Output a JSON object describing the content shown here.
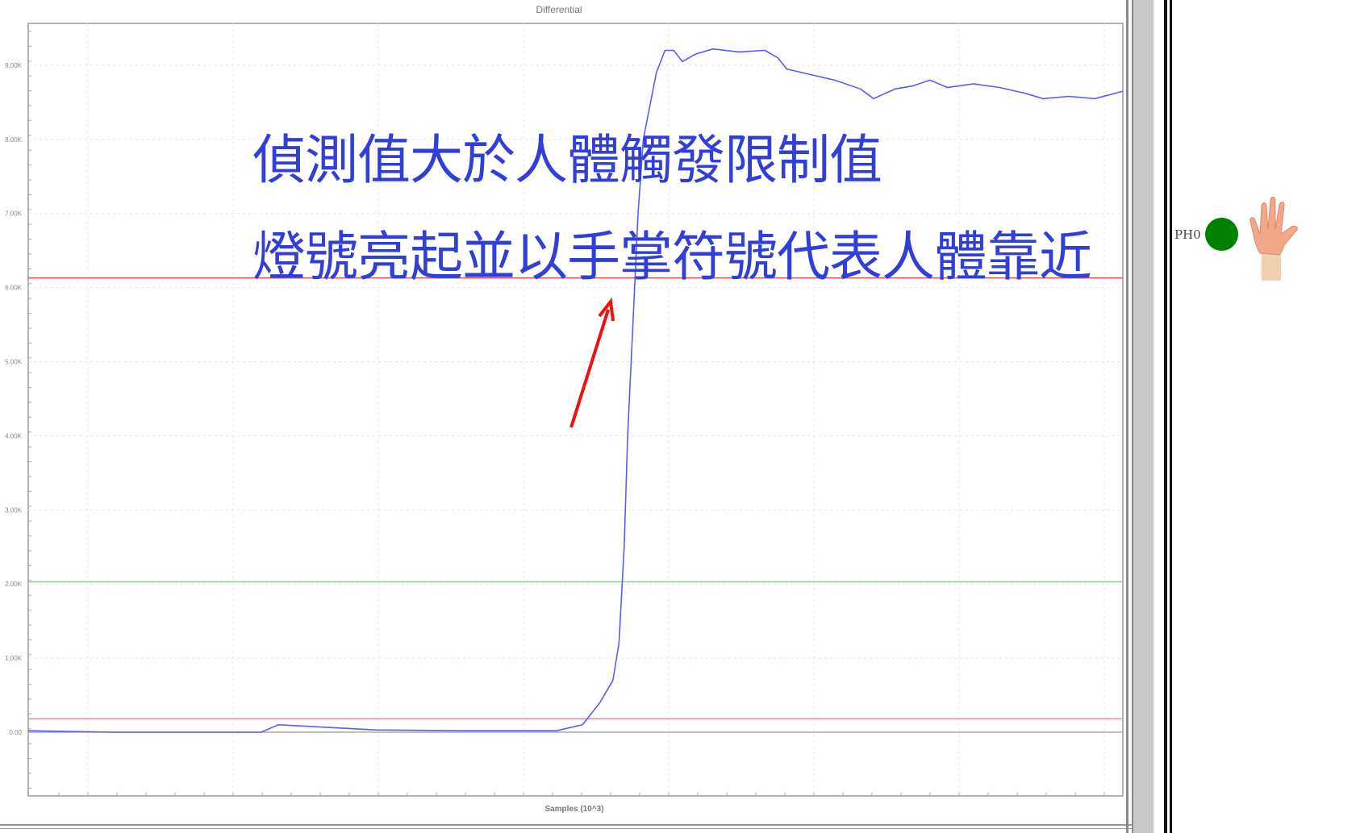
{
  "chart_data": {
    "type": "line",
    "title": "Differential",
    "xlabel": "Samples (10^3)",
    "ylabel": "",
    "ylim": [
      -0.85,
      10.2
    ],
    "xlim": [
      0,
      126
    ],
    "yticks": [
      "0.00",
      "1.00K",
      "2.00K",
      "3.00K",
      "4.00K",
      "5.00K",
      "6.00K",
      "7.00K",
      "8.00K",
      "9.00K"
    ],
    "ytick_values": [
      0,
      1,
      2,
      3,
      4,
      5,
      6,
      7,
      8,
      9
    ],
    "grid": true,
    "series": [
      {
        "color": "#5a5aff",
        "x": [
          0,
          10,
          26.8,
          28.8,
          32,
          40,
          50,
          60.8,
          63.8,
          65.8,
          67.3,
          68,
          68.6,
          69,
          69.6,
          70.2,
          70.8,
          72.3,
          73.3,
          74.3,
          75.3,
          76.8,
          78.8,
          81.8,
          84.8,
          86.3,
          87.3,
          89.8,
          92.8,
          95.8,
          97.3,
          99.8,
          101.8,
          103.8,
          105.8,
          108.8,
          111.8,
          114.8,
          116.8,
          119.8,
          122.8,
          126
        ],
        "y": [
          0.02,
          0.0,
          0.0,
          0.1,
          0.08,
          0.03,
          0.02,
          0.02,
          0.1,
          0.4,
          0.7,
          1.2,
          2.5,
          4.0,
          5.5,
          7.0,
          8.0,
          8.9,
          9.2,
          9.2,
          9.05,
          9.15,
          9.22,
          9.18,
          9.2,
          9.1,
          8.95,
          8.88,
          8.8,
          8.68,
          8.55,
          8.68,
          8.72,
          8.8,
          8.7,
          8.75,
          8.7,
          8.62,
          8.55,
          8.58,
          8.55,
          8.65
        ]
      }
    ],
    "reference_lines": [
      {
        "value": 6.13,
        "color": "#d06060"
      },
      {
        "value": 2.03,
        "color": "#88dd88"
      },
      {
        "value": 0.18,
        "color": "#ee88a0"
      },
      {
        "value": 0.0,
        "color": "#aaaaaa"
      }
    ],
    "annotations": [
      "偵測值大於人體觸發限制值",
      "燈號亮起並以手掌符號代表人體靠近"
    ],
    "arrow_color": "#ee1111"
  },
  "indicator": {
    "label": "PH0",
    "led_color": "#008000",
    "led_state": "on",
    "icon": "hand-icon"
  }
}
